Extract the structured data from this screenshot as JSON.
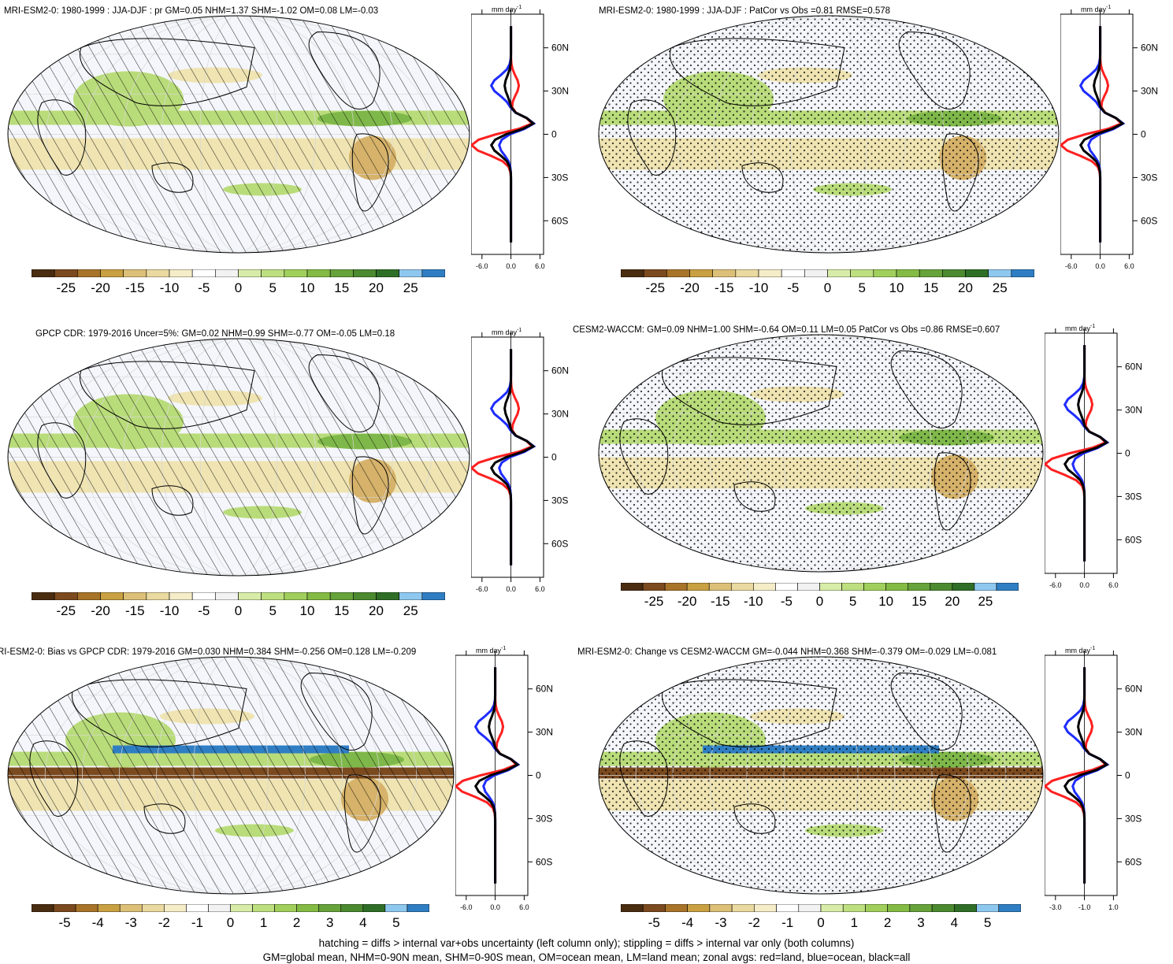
{
  "panels": [
    {
      "title": "MRI-ESM2-0: 1980-1999 : JJA-DJF : pr GM=0.05 NHM=1.37 SHM=-1.02 OM=0.08 LM=-0.03",
      "pattern": "hatch",
      "zonal_xticks": [
        "-6.0",
        "0.0",
        "6.0"
      ],
      "colorbar_labels": [
        "-25",
        "-20",
        "-15",
        "-10",
        "-5",
        "0",
        "5",
        "10",
        "15",
        "20",
        "25"
      ]
    },
    {
      "title": "MRI-ESM2-0: 1980-1999 : JJA-DJF : PatCor vs Obs =0.81 RMSE=0.578",
      "pattern": "stipple",
      "zonal_xticks": [
        "-6.0",
        "0.0",
        "6.0"
      ],
      "colorbar_labels": [
        "-25",
        "-20",
        "-15",
        "-10",
        "-5",
        "0",
        "5",
        "10",
        "15",
        "20",
        "25"
      ]
    },
    {
      "title": "GPCP CDR: 1979-2016 Uncer=5%: GM=0.02 NHM=0.99 SHM=-0.77 OM=-0.05 LM=0.18",
      "pattern": "hatch",
      "zonal_xticks": [
        "-6.0",
        "0.0",
        "6.0"
      ],
      "colorbar_labels": [
        "-25",
        "-20",
        "-15",
        "-10",
        "-5",
        "0",
        "5",
        "10",
        "15",
        "20",
        "25"
      ]
    },
    {
      "title": "CESM2-WACCM: GM=0.09 NHM=1.00 SHM=-0.64 OM=0.11 LM=0.05 PatCor vs Obs =0.86 RMSE=0.607",
      "pattern": "stipple",
      "zonal_xticks": [
        "-6.0",
        "0.0",
        "6.0"
      ],
      "colorbar_labels": [
        "-25",
        "-20",
        "-15",
        "-10",
        "-5",
        "0",
        "5",
        "10",
        "15",
        "20",
        "25"
      ]
    },
    {
      "title": "RI-ESM2-0: Bias vs GPCP CDR: 1979-2016 GM=0.030 NHM=0.384 SHM=-0.256 OM=0.128 LM=-0.209",
      "pattern": "hatch",
      "zonal_xticks": [
        "-6.0",
        "0.0",
        "6.0"
      ],
      "colorbar_labels": [
        "-5",
        "-4",
        "-3",
        "-2",
        "-1",
        "0",
        "1",
        "2",
        "3",
        "4",
        "5"
      ]
    },
    {
      "title": "MRI-ESM2-0: Change vs CESM2-WACCM GM=-0.044 NHM=0.368 SHM=-0.379 OM=-0.029 LM=-0.081",
      "pattern": "stipple",
      "zonal_xticks": [
        "-3.0",
        "-1.0",
        "1.0"
      ],
      "colorbar_labels": [
        "-5",
        "-4",
        "-3",
        "-2",
        "-1",
        "0",
        "1",
        "2",
        "3",
        "4",
        "5"
      ]
    }
  ],
  "zonal_units": "mm day",
  "zonal_units_exp": "-1",
  "lat_labels": [
    "60N",
    "30N",
    "0",
    "30S",
    "60S"
  ],
  "colorbar_colors": [
    "#4a2c10",
    "#7b4a1e",
    "#a8742a",
    "#c9a042",
    "#ddc078",
    "#ead9a0",
    "#f5ecc8",
    "#ffffff",
    "#f2f2f2",
    "#d7eca8",
    "#bedf80",
    "#a1cf5c",
    "#84bb45",
    "#66a33a",
    "#4c8a30",
    "#2f6e26",
    "#8ec8ef",
    "#2f7ec4"
  ],
  "series_colors": {
    "land": "#ff2020",
    "ocean": "#1e2cff",
    "all": "#000000"
  },
  "footer": {
    "line1": "hatching = diffs > internal var+obs uncertainty (left column only); stippling = diffs > internal var only (both columns)",
    "line2": "GM=global mean, NHM=0-90N mean, SHM=0-90S mean, OM=ocean mean, LM=land mean; zonal avgs: red=land, blue=ocean, black=all"
  }
}
